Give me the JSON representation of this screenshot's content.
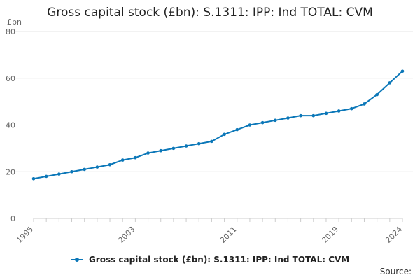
{
  "chart_data": {
    "type": "line",
    "title": "Gross capital stock (£bn): S.1311: IPP: Ind TOTAL: CVM",
    "ylabel": "£bn",
    "xlabel": "",
    "ylim": [
      0,
      80
    ],
    "yticks": [
      0,
      20,
      40,
      60,
      80
    ],
    "xticks": [
      "1995",
      "2003",
      "2011",
      "2019",
      "2024"
    ],
    "grid": true,
    "legend_position": "bottom",
    "x": [
      1995,
      1996,
      1997,
      1998,
      1999,
      2000,
      2001,
      2002,
      2003,
      2004,
      2005,
      2006,
      2007,
      2008,
      2009,
      2010,
      2011,
      2012,
      2013,
      2014,
      2015,
      2016,
      2017,
      2018,
      2019,
      2020,
      2021,
      2022,
      2023,
      2024
    ],
    "series": [
      {
        "name": "Gross capital stock (£bn): S.1311: IPP: Ind TOTAL: CVM",
        "color": "#0b77b8",
        "values": [
          17,
          18,
          19,
          20,
          21,
          22,
          23,
          25,
          26,
          28,
          29,
          30,
          31,
          32,
          33,
          36,
          38,
          40,
          41,
          42,
          43,
          44,
          44,
          45,
          46,
          47,
          49,
          53,
          58,
          63
        ]
      }
    ]
  },
  "source_label": "Source:"
}
